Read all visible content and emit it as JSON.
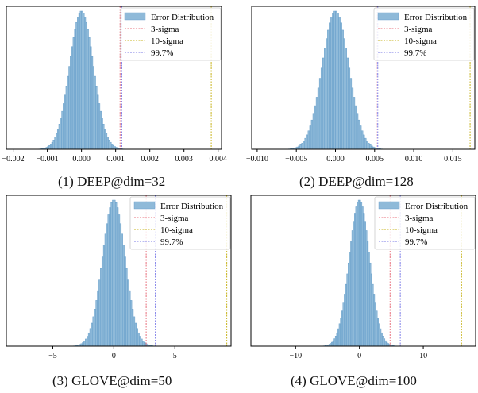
{
  "colors": {
    "hist": "#8fbad9",
    "hist_edge": "#5f99c7",
    "sigma3": "#e8707c",
    "sigma10": "#c7b31c",
    "p997": "#7a7ae6",
    "axis": "#000000"
  },
  "legend_labels": [
    "Error Distribution",
    "3-sigma",
    "10-sigma",
    "99.7%"
  ],
  "captions": [
    "(1) DEEP@dim=32",
    "(2) DEEP@dim=128",
    "(3) GLOVE@dim=50",
    "(4) GLOVE@dim=100"
  ],
  "chart_data": [
    {
      "type": "bar",
      "title": "(1) DEEP@dim=32",
      "xlim": [
        -0.0022,
        0.0041
      ],
      "xticks": [
        -0.002,
        -0.001,
        0.0,
        0.001,
        0.002,
        0.003,
        0.004
      ],
      "xtick_labels": [
        "−0.002",
        "−0.001",
        "0.000",
        "0.001",
        "0.002",
        "0.003",
        "0.004"
      ],
      "bins": {
        "start": -0.00125,
        "end": 0.00125,
        "count": 60
      },
      "distribution": {
        "mean": 0.0,
        "sd": 0.00035
      },
      "vlines": {
        "3-sigma": 0.00113,
        "10-sigma": 0.0038,
        "99.7%": 0.00118
      },
      "legend": "top-right",
      "grid": false
    },
    {
      "type": "bar",
      "title": "(2) DEEP@dim=128",
      "xlim": [
        -0.0107,
        0.0178
      ],
      "xticks": [
        -0.01,
        -0.005,
        0.0,
        0.005,
        0.01,
        0.015
      ],
      "xtick_labels": [
        "−0.010",
        "−0.005",
        "0.000",
        "0.005",
        "0.010",
        "0.015"
      ],
      "bins": {
        "start": -0.0062,
        "end": 0.0062,
        "count": 60
      },
      "distribution": {
        "mean": 0.0,
        "sd": 0.0017
      },
      "vlines": {
        "3-sigma": 0.0052,
        "10-sigma": 0.0172,
        "99.7%": 0.0054
      },
      "legend": "top-right",
      "grid": false
    },
    {
      "type": "bar",
      "title": "(3) GLOVE@dim=50",
      "xlim": [
        -8.8,
        9.6
      ],
      "xticks": [
        -5,
        0,
        5
      ],
      "xtick_labels": [
        "−5",
        "0",
        "5"
      ],
      "bins": {
        "start": -3.7,
        "end": 3.7,
        "count": 60
      },
      "distribution": {
        "mean": 0.0,
        "sd": 0.93
      },
      "vlines": {
        "3-sigma": 2.65,
        "10-sigma": 9.25,
        "99.7%": 3.4
      },
      "legend": "top-right",
      "grid": false
    },
    {
      "type": "bar",
      "title": "(4) GLOVE@dim=100",
      "xlim": [
        -17.0,
        18.2
      ],
      "xticks": [
        -10,
        0,
        10
      ],
      "xtick_labels": [
        "−10",
        "0",
        "10"
      ],
      "bins": {
        "start": -6.0,
        "end": 6.0,
        "count": 60
      },
      "distribution": {
        "mean": 0.0,
        "sd": 1.6
      },
      "vlines": {
        "3-sigma": 4.8,
        "10-sigma": 16.0,
        "99.7%": 6.4
      },
      "legend": "top-right",
      "grid": false
    }
  ]
}
